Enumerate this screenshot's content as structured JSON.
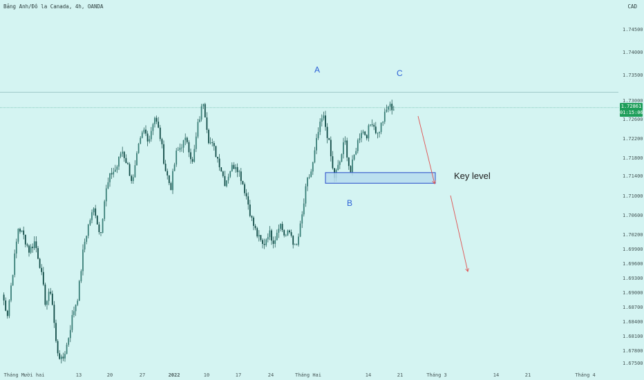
{
  "header": {
    "title": "Bảng Anh/Đô la Canada, 4h, OANDA",
    "currency": "CAD"
  },
  "price_badge": {
    "price": "1.72861",
    "countdown": "01:15:06"
  },
  "annotations": {
    "label_a": "A",
    "label_b": "B",
    "label_c": "C",
    "key_level": "Key level"
  },
  "colors": {
    "background": "#d4f4f2",
    "candle": "#0f4a45",
    "key_level_fill": "#b6dcef",
    "key_level_border": "#2448c8",
    "label_blue": "#2a5fd6",
    "arrow_red": "#e05050",
    "price_line": "#2e9b7f",
    "axis_text": "#445555"
  },
  "chart_data": {
    "type": "candlestick",
    "title": "Bảng Anh/Đô la Canada, 4h, OANDA",
    "symbol": "GBP/CAD",
    "timeframe": "4h",
    "ylim": [
      1.6745,
      1.748
    ],
    "y_ticks": [
      "1.74500",
      "1.74000",
      "1.73500",
      "1.73000",
      "1.72600",
      "1.72200",
      "1.71800",
      "1.71400",
      "1.71000",
      "1.70600",
      "1.70200",
      "1.69900",
      "1.69600",
      "1.69300",
      "1.69000",
      "1.68700",
      "1.68400",
      "1.68100",
      "1.67800",
      "1.67500"
    ],
    "x_ticks": [
      "Tháng Mười hai",
      "13",
      "20",
      "27",
      "2022",
      "10",
      "17",
      "24",
      "Tháng Hai",
      "14",
      "21",
      "Tháng 3",
      "14",
      "21",
      "Tháng 4"
    ],
    "last_price": 1.72861,
    "horizontal_lines": [
      1.7318,
      1.72861
    ],
    "key_level_zone": {
      "from": 1.713,
      "to": 1.7152
    },
    "closes": [
      1.69,
      1.686,
      1.695,
      1.704,
      1.702,
      1.699,
      1.701,
      1.696,
      1.688,
      1.691,
      1.679,
      1.676,
      1.68,
      1.686,
      1.69,
      1.7,
      1.705,
      1.708,
      1.702,
      1.711,
      1.715,
      1.716,
      1.72,
      1.717,
      1.713,
      1.72,
      1.724,
      1.722,
      1.727,
      1.723,
      1.716,
      1.712,
      1.719,
      1.721,
      1.722,
      1.717,
      1.725,
      1.73,
      1.722,
      1.72,
      1.717,
      1.713,
      1.716,
      1.717,
      1.714,
      1.71,
      1.705,
      1.702,
      1.7,
      1.703,
      1.701,
      1.705,
      1.702,
      1.703,
      1.699,
      1.705,
      1.713,
      1.716,
      1.723,
      1.727,
      1.722,
      1.714,
      1.717,
      1.722,
      1.715,
      1.72,
      1.724,
      1.723,
      1.726,
      1.723,
      1.726,
      1.729,
      1.7285
    ],
    "arrows": [
      {
        "from": [
          1.7265,
          "Tháng 3"
        ],
        "direction": "down",
        "to": 1.714
      },
      {
        "from": [
          1.7115,
          "Tháng 3"
        ],
        "direction": "down",
        "to": 1.6935
      }
    ]
  }
}
